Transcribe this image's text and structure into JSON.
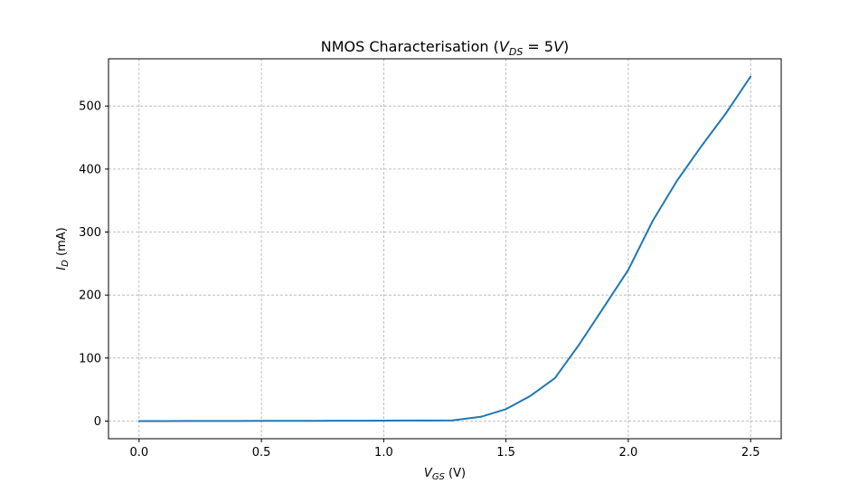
{
  "chart_data": {
    "type": "line",
    "title": {
      "main": "NMOS Characterisation (",
      "v": "V",
      "v_sub": "DS",
      "eq": " = 5",
      "v2": "V",
      "close": ")"
    },
    "xlabel": {
      "sym": "V",
      "sub": "GS",
      "unit": " (V)"
    },
    "ylabel": {
      "sym": "I",
      "sub": "D",
      "unit": " (mA)"
    },
    "xlim": [
      -0.125,
      2.625
    ],
    "ylim": [
      -28,
      575
    ],
    "xticks": [
      0.0,
      0.5,
      1.0,
      1.5,
      2.0,
      2.5
    ],
    "xtick_labels": [
      "0.0",
      "0.5",
      "1.0",
      "1.5",
      "2.0",
      "2.5"
    ],
    "yticks": [
      0,
      100,
      200,
      300,
      400,
      500
    ],
    "ytick_labels": [
      "0",
      "100",
      "200",
      "300",
      "400",
      "500"
    ],
    "grid": true,
    "series": [
      {
        "color": "#1f77b4",
        "x": [
          0.0,
          0.1,
          0.2,
          0.3,
          0.4,
          0.5,
          0.6,
          0.7,
          0.8,
          0.9,
          1.0,
          1.1,
          1.2,
          1.28,
          1.4,
          1.5,
          1.6,
          1.7,
          1.8,
          1.9,
          2.0,
          2.1,
          2.2,
          2.3,
          2.4,
          2.5
        ],
        "y": [
          0,
          0,
          0.1,
          0.1,
          0.2,
          0.3,
          0.3,
          0.4,
          0.5,
          0.6,
          0.7,
          0.8,
          0.9,
          1.0,
          7,
          19,
          40,
          68,
          122,
          181,
          240,
          318,
          382,
          437,
          489,
          547
        ]
      }
    ]
  }
}
